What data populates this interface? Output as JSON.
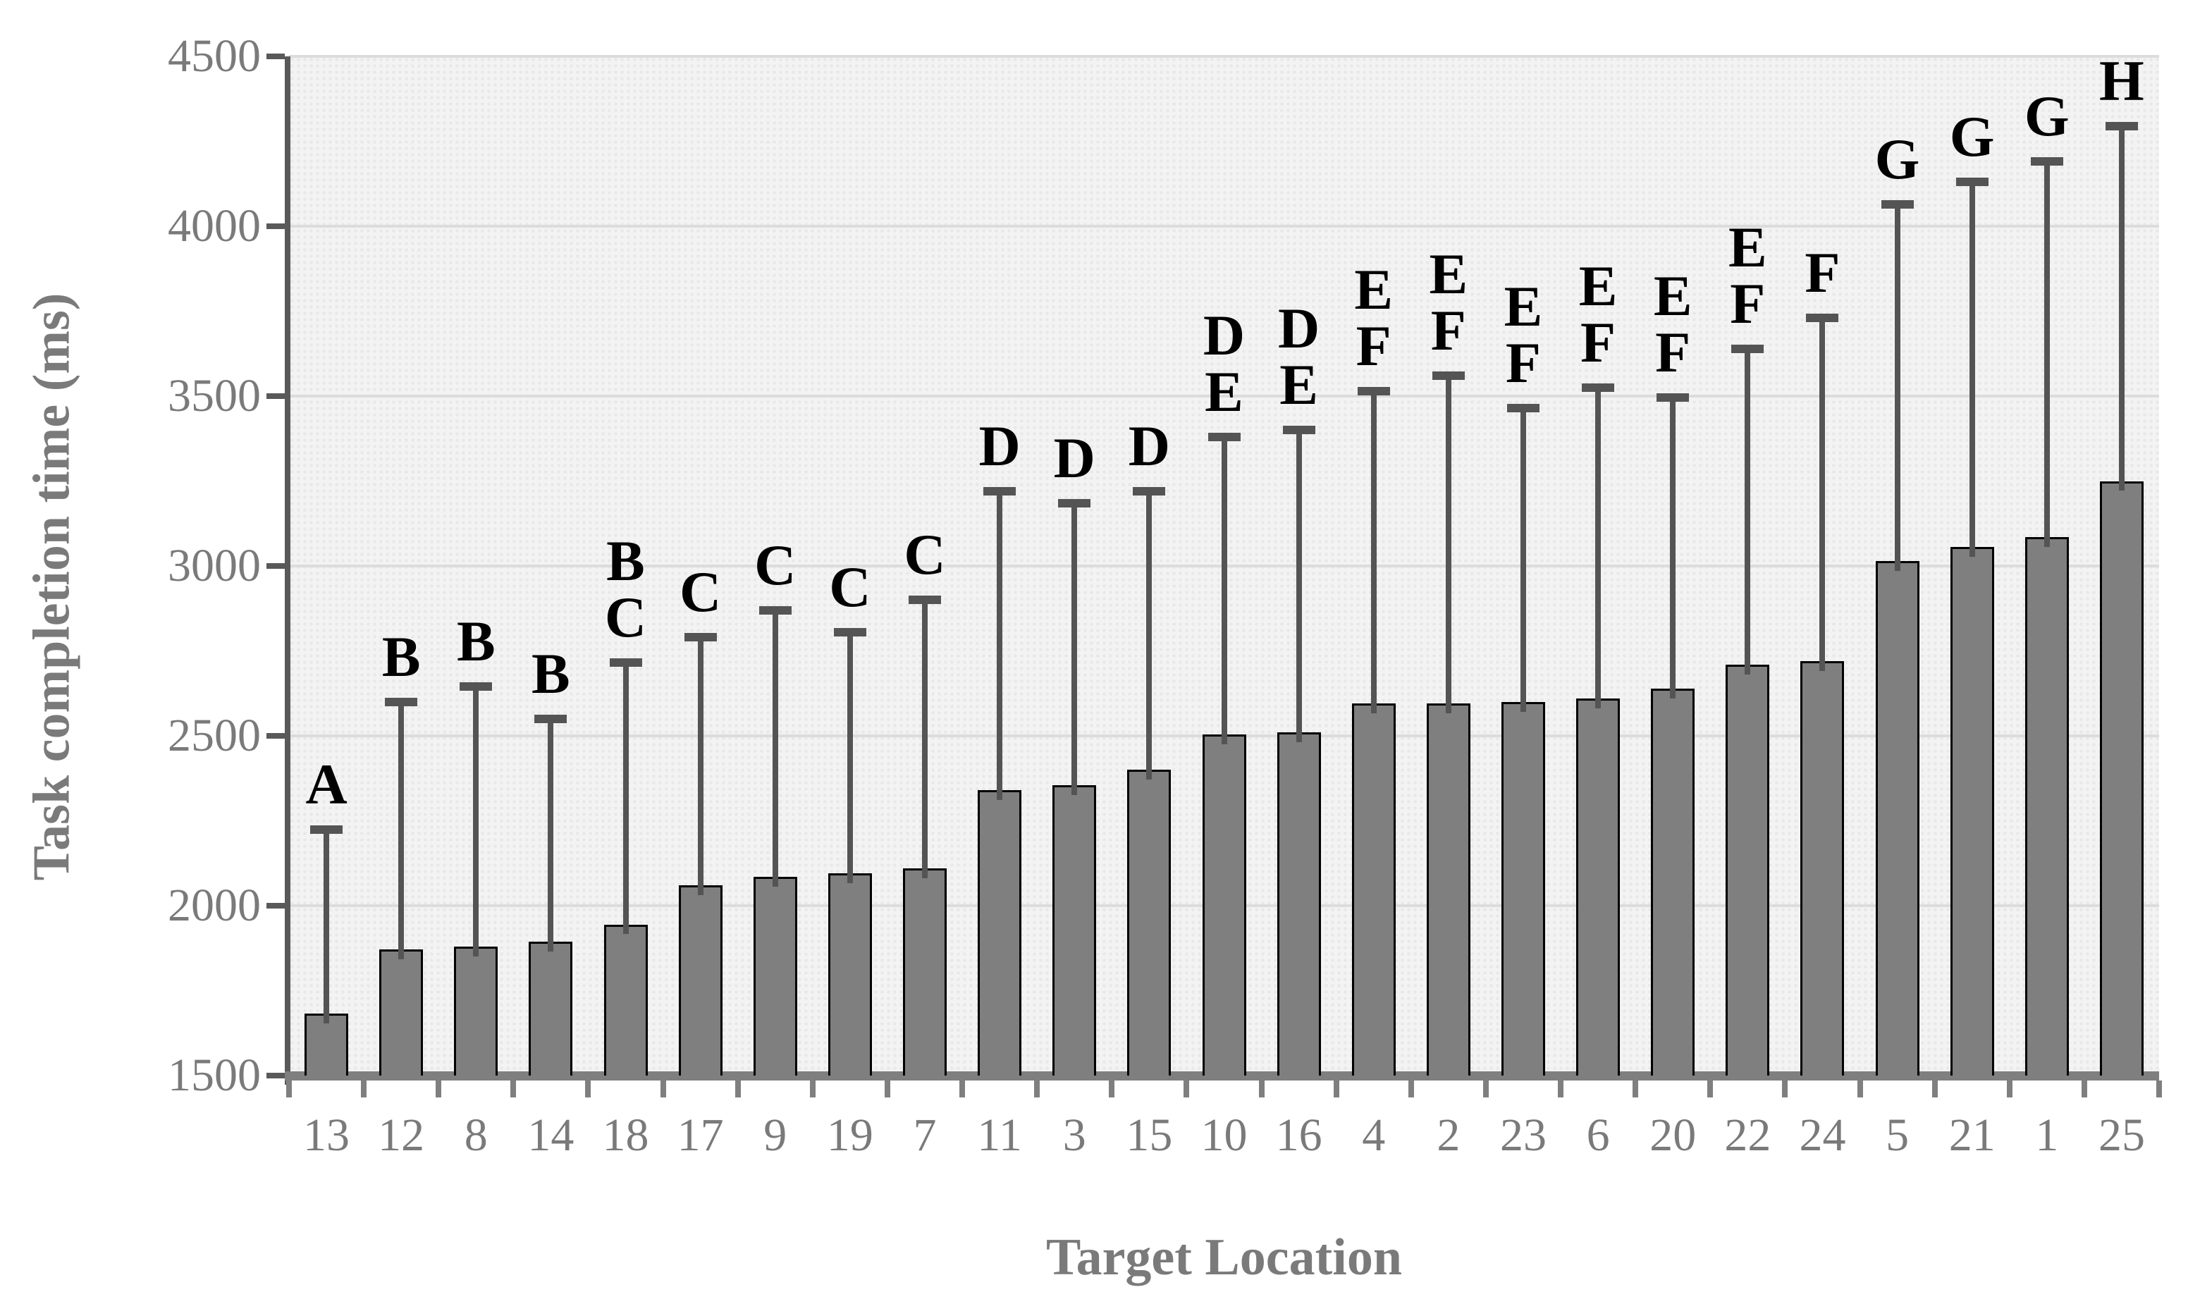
{
  "chart_data": {
    "type": "bar",
    "title": "",
    "xlabel": "Target Location",
    "ylabel": "Task completion time (ms)",
    "ylim": [
      1500,
      4500
    ],
    "yticks": [
      1500,
      2000,
      2500,
      3000,
      3500,
      4000,
      4500
    ],
    "grid": true,
    "legend_position": "none",
    "categories": [
      "13",
      "12",
      "8",
      "14",
      "18",
      "17",
      "9",
      "19",
      "7",
      "11",
      "3",
      "15",
      "10",
      "16",
      "4",
      "2",
      "23",
      "6",
      "20",
      "22",
      "24",
      "5",
      "21",
      "1",
      "25"
    ],
    "values": [
      1683,
      1872,
      1880,
      1895,
      1945,
      2060,
      2085,
      2095,
      2110,
      2340,
      2355,
      2400,
      2505,
      2510,
      2595,
      2595,
      2600,
      2610,
      2640,
      2710,
      2720,
      3015,
      3055,
      3085,
      3250
    ],
    "error_bar_tops": [
      2225,
      2600,
      2645,
      2550,
      2715,
      2790,
      2870,
      2805,
      2900,
      3220,
      3185,
      3220,
      3380,
      3400,
      3515,
      3560,
      3465,
      3525,
      3495,
      3640,
      3730,
      4065,
      4130,
      4190,
      4295
    ],
    "sig_letters": [
      [
        "A"
      ],
      [
        "B"
      ],
      [
        "B"
      ],
      [
        "B"
      ],
      [
        "B",
        "C"
      ],
      [
        "C"
      ],
      [
        "C"
      ],
      [
        "C"
      ],
      [
        "C"
      ],
      [
        "D"
      ],
      [
        "D"
      ],
      [
        "D"
      ],
      [
        "D",
        "E"
      ],
      [
        "D",
        "E"
      ],
      [
        "E",
        "F"
      ],
      [
        "E",
        "F"
      ],
      [
        "E",
        "F"
      ],
      [
        "E",
        "F"
      ],
      [
        "E",
        "F"
      ],
      [
        "E",
        "F"
      ],
      [
        "F"
      ],
      [
        "G"
      ],
      [
        "G"
      ],
      [
        "G"
      ],
      [
        "H"
      ]
    ]
  },
  "colors": {
    "bar_fill": "#7f7f7f",
    "bar_border": "#000000",
    "error_bar": "#545454",
    "gridline": "#dcdcdc",
    "plot_background": "#f3f3f3",
    "axis_line": "#7f7f7f",
    "tick_label": "#7a7a7a",
    "sig_letter": "#000000"
  }
}
